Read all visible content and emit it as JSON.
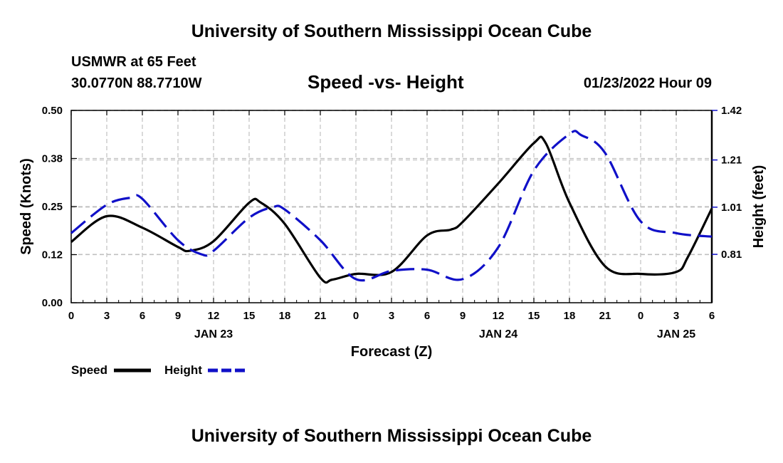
{
  "page": {
    "title": "University of Southern Mississippi Ocean Cube",
    "footer_title": "University of Southern Mississippi Ocean Cube",
    "station": "USMWR at 65 Feet",
    "coordinates": "30.0770N  88.7710W",
    "subtitle": "Speed -vs- Height",
    "datetime": "01/23/2022 Hour 09"
  },
  "colors": {
    "speed": "#000000",
    "height": "#1010c8",
    "grid": "#c0c0c0"
  },
  "chart_data": {
    "type": "line",
    "title": "Speed -vs- Height",
    "xlabel": "Forecast (Z)",
    "ylabel": "Speed (Knots)",
    "y2label": "Height (feet)",
    "x_range": [
      0,
      54
    ],
    "ylim": [
      0,
      0.5
    ],
    "y2lim": [
      0.605,
      1.42
    ],
    "x_ticks": [
      0,
      3,
      6,
      9,
      12,
      15,
      18,
      21,
      24,
      27,
      30,
      33,
      36,
      39,
      42,
      45,
      48,
      51,
      54
    ],
    "x_tick_labels": [
      "0",
      "3",
      "6",
      "9",
      "12",
      "15",
      "18",
      "21",
      "0",
      "3",
      "6",
      "9",
      "12",
      "15",
      "18",
      "21",
      "0",
      "3",
      "6"
    ],
    "day_labels": [
      {
        "text": "JAN 23",
        "x": 12
      },
      {
        "text": "JAN 24",
        "x": 36
      },
      {
        "text": "JAN 25",
        "x": 51
      }
    ],
    "y_ticks": [
      0.0,
      0.125,
      0.25,
      0.375,
      0.5
    ],
    "y_tick_labels": [
      "0.00",
      "0.12",
      "0.25",
      "0.38",
      "0.50"
    ],
    "y2_ticks": [
      0.81,
      1.01,
      1.21,
      1.42
    ],
    "y2_tick_labels": [
      "0.81",
      "1.01",
      "1.21",
      "1.42"
    ],
    "grid": true,
    "legend_position": "bottom-left",
    "series": [
      {
        "name": "Speed",
        "axis": "left",
        "style": "solid",
        "x": [
          0,
          3,
          6,
          9,
          10,
          12,
          15,
          16,
          18,
          21,
          22,
          24,
          27,
          30,
          32,
          33,
          36,
          39,
          40,
          42,
          45,
          48,
          51,
          52,
          54
        ],
        "y": [
          0.158,
          0.225,
          0.195,
          0.145,
          0.135,
          0.16,
          0.26,
          0.26,
          0.205,
          0.065,
          0.06,
          0.075,
          0.08,
          0.175,
          0.19,
          0.21,
          0.31,
          0.415,
          0.415,
          0.26,
          0.095,
          0.075,
          0.08,
          0.12,
          0.245
        ]
      },
      {
        "name": "Height",
        "axis": "right",
        "style": "dashed",
        "x": [
          0,
          3,
          5,
          6,
          9,
          11,
          12,
          15,
          17,
          18,
          21,
          24,
          27,
          30,
          33,
          36,
          39,
          42,
          43,
          45,
          48,
          51,
          54
        ],
        "y": [
          0.9,
          1.02,
          1.05,
          1.045,
          0.87,
          0.81,
          0.825,
          0.965,
          1.01,
          1.0,
          0.87,
          0.705,
          0.74,
          0.745,
          0.705,
          0.84,
          1.165,
          1.32,
          1.315,
          1.24,
          0.95,
          0.9,
          0.885
        ]
      }
    ]
  }
}
